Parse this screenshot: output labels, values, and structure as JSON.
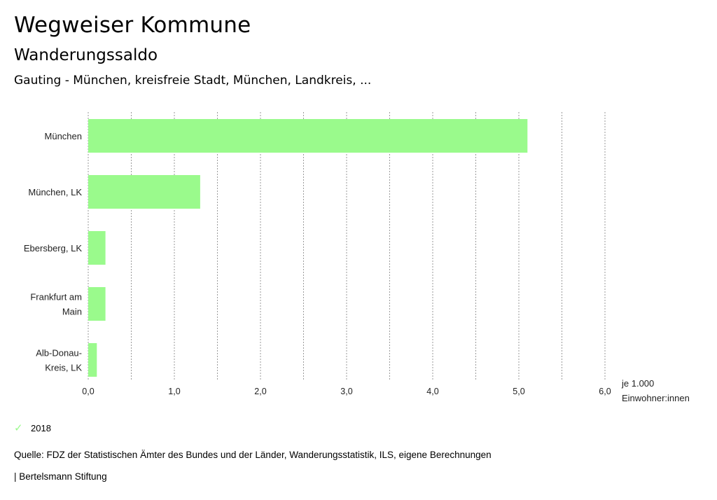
{
  "header": {
    "title": "Wegweiser Kommune",
    "subtitle": "Wanderungssaldo",
    "context": "Gauting - München, kreisfreie Stadt, München, Landkreis, ..."
  },
  "chart_data": {
    "type": "bar",
    "orientation": "horizontal",
    "categories": [
      [
        "München"
      ],
      [
        "München, LK"
      ],
      [
        "Ebersberg, LK"
      ],
      [
        "Frankfurt am",
        "Main"
      ],
      [
        "Alb-Donau-",
        "Kreis, LK"
      ]
    ],
    "series": [
      {
        "name": "2018",
        "values": [
          5.1,
          1.3,
          0.2,
          0.2,
          0.1
        ],
        "color": "#9afa8c"
      }
    ],
    "xlim": [
      0,
      6
    ],
    "xticks": [
      0,
      1,
      2,
      3,
      4,
      5,
      6
    ],
    "xtick_labels": [
      "0,0",
      "1,0",
      "2,0",
      "3,0",
      "4,0",
      "5,0",
      "6,0"
    ],
    "unit_label": [
      "je 1.000",
      "Einwohner:innen"
    ],
    "grid": "vertical dotted"
  },
  "legend": {
    "label": "2018",
    "color": "#9afa8c"
  },
  "footer": {
    "source": "Quelle: FDZ der Statistischen Ämter des Bundes und der Länder, Wanderungsstatistik, ILS, eigene Berechnungen",
    "brand": "| Bertelsmann Stiftung"
  }
}
